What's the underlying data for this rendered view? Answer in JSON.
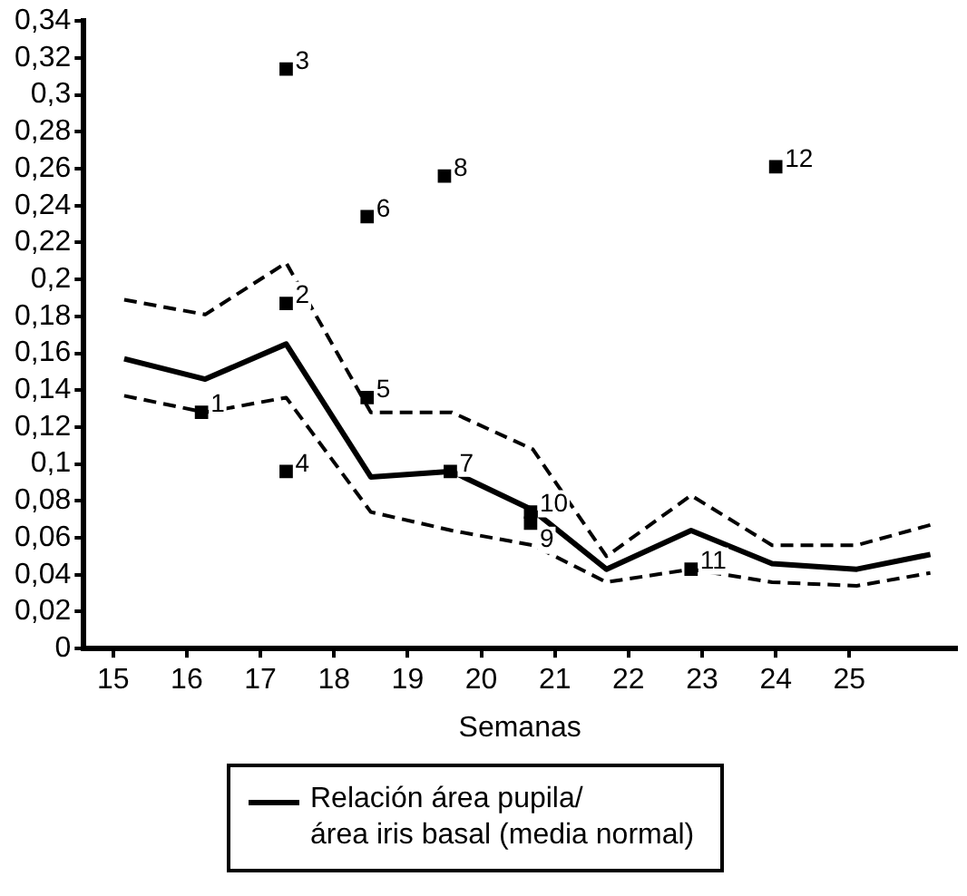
{
  "chart_data": {
    "type": "line",
    "xlabel": "Semanas",
    "xlim": [
      14.6,
      26.45
    ],
    "xticks": [
      15,
      16,
      17,
      18,
      19,
      20,
      21,
      22,
      23,
      24,
      25
    ],
    "ylim": [
      0,
      0.34
    ],
    "yticks": [
      0,
      {
        "value": 0.02,
        "label": "0,02"
      },
      {
        "value": 0.04,
        "label": "0,04"
      },
      {
        "value": 0.06,
        "label": "0,06"
      },
      {
        "value": 0.08,
        "label": "0,08"
      },
      {
        "value": 0.1,
        "label": "0,1"
      },
      {
        "value": 0.12,
        "label": "0,12"
      },
      {
        "value": 0.14,
        "label": "0,14"
      },
      {
        "value": 0.16,
        "label": "0,16"
      },
      {
        "value": 0.18,
        "label": "0,18"
      },
      {
        "value": 0.2,
        "label": "0,2"
      },
      {
        "value": 0.22,
        "label": "0,22"
      },
      {
        "value": 0.24,
        "label": "0,24"
      },
      {
        "value": 0.26,
        "label": "0,26"
      },
      {
        "value": 0.28,
        "label": "0,28"
      },
      {
        "value": 0.3,
        "label": "0,3"
      },
      {
        "value": 0.32,
        "label": "0,32"
      },
      {
        "value": 0.34,
        "label": "0,34"
      }
    ],
    "grid": false,
    "legend": "bottom",
    "series": [
      {
        "name": "Relación área pupila/\nárea iris basal (media normal)",
        "color": "#000000",
        "line_style": "solid",
        "x": [
          15.15,
          16.25,
          17.35,
          18.5,
          19.6,
          20.7,
          21.7,
          22.85,
          23.95,
          25.1,
          26.1
        ],
        "values": [
          0.157,
          0.146,
          0.165,
          0.093,
          0.096,
          0.075,
          0.043,
          0.064,
          0.046,
          0.043,
          0.051
        ]
      },
      {
        "color": "#000000",
        "line_style": "dashed",
        "x": [
          15.15,
          16.25,
          17.35,
          18.5,
          19.6,
          20.7,
          21.7,
          22.85,
          23.95,
          25.1,
          26.1
        ],
        "values": [
          0.189,
          0.181,
          0.209,
          0.128,
          0.128,
          0.108,
          0.05,
          0.083,
          0.056,
          0.056,
          0.067
        ]
      },
      {
        "color": "#000000",
        "line_style": "dashed",
        "x": [
          15.15,
          16.25,
          17.35,
          18.5,
          19.6,
          20.7,
          21.7,
          22.85,
          23.95,
          25.1,
          26.1
        ],
        "values": [
          0.137,
          0.128,
          0.136,
          0.074,
          0.064,
          0.056,
          0.036,
          0.043,
          0.036,
          0.034,
          0.041
        ]
      },
      {
        "type": "scatter",
        "color": "#000000",
        "marker": "square",
        "x": [
          16.2,
          17.35,
          17.35,
          17.35,
          18.45,
          18.45,
          19.58,
          19.5,
          20.67,
          20.67,
          22.85,
          24.0
        ],
        "values": [
          0.128,
          0.187,
          0.314,
          0.096,
          0.136,
          0.234,
          0.096,
          0.256,
          0.068,
          0.074,
          0.043,
          0.261
        ]
      }
    ],
    "annotations": [
      {
        "text": "1",
        "x": 16.2,
        "y": 0.128
      },
      {
        "text": "2",
        "x": 17.35,
        "y": 0.187
      },
      {
        "text": "3",
        "x": 17.35,
        "y": 0.314
      },
      {
        "text": "4",
        "x": 17.35,
        "y": 0.096
      },
      {
        "text": "5",
        "x": 18.45,
        "y": 0.136
      },
      {
        "text": "6",
        "x": 18.45,
        "y": 0.234
      },
      {
        "text": "7",
        "x": 19.58,
        "y": 0.096
      },
      {
        "text": "8",
        "x": 19.5,
        "y": 0.256
      },
      {
        "text": "9",
        "x": 20.67,
        "y": 0.068
      },
      {
        "text": "10",
        "x": 20.67,
        "y": 0.074
      },
      {
        "text": "11",
        "x": 22.85,
        "y": 0.043
      },
      {
        "text": "12",
        "x": 24.0,
        "y": 0.261
      }
    ]
  }
}
